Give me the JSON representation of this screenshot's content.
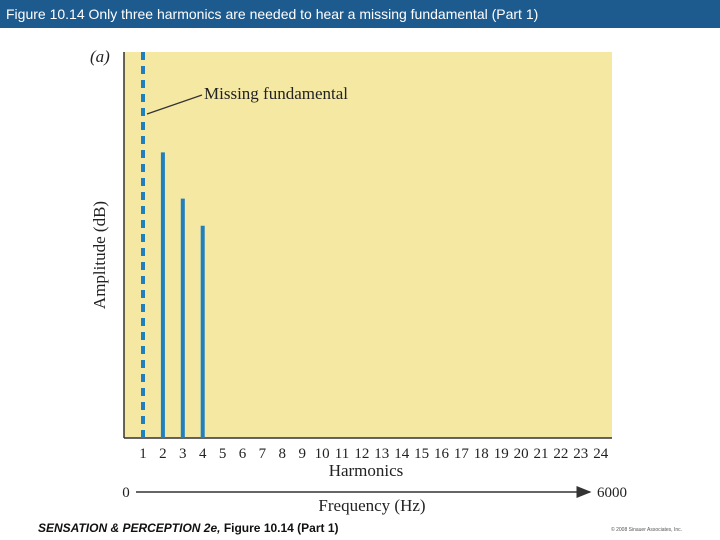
{
  "header": {
    "title": "Figure 10.14 Only three harmonics are needed to hear a missing fundamental (Part 1)"
  },
  "footer": {
    "book_title": "SENSATION & PERCEPTION 2e, ",
    "figure_label": "Figure 10.14 (Part 1)",
    "copyright": "© 2008 Sinauer Associates, Inc."
  },
  "colors": {
    "header_bg": "#1d5a8e",
    "plot_bg": "#f5e8a3",
    "bar": "#1f7fbf",
    "axis": "#333333"
  },
  "chart_data": {
    "type": "bar",
    "panel_label": "(a)",
    "ylabel": "Amplitude (dB)",
    "xlabel": "Harmonics",
    "categories": [
      "1",
      "2",
      "3",
      "4",
      "5",
      "6",
      "7",
      "8",
      "9",
      "10",
      "11",
      "12",
      "13",
      "14",
      "15",
      "16",
      "17",
      "18",
      "19",
      "20",
      "21",
      "22",
      "23",
      "24"
    ],
    "values": [
      null,
      0.74,
      0.62,
      0.55,
      0,
      0,
      0,
      0,
      0,
      0,
      0,
      0,
      0,
      0,
      0,
      0,
      0,
      0,
      0,
      0,
      0,
      0,
      0,
      0
    ],
    "ylim": [
      0,
      1
    ],
    "missing_fundamental": {
      "harmonic": 1,
      "style": "dashed"
    },
    "annotation": "Missing fundamental",
    "frequency_axis": {
      "label": "Frequency (Hz)",
      "min_label": "0",
      "max_label": "6000"
    },
    "grid": false
  }
}
